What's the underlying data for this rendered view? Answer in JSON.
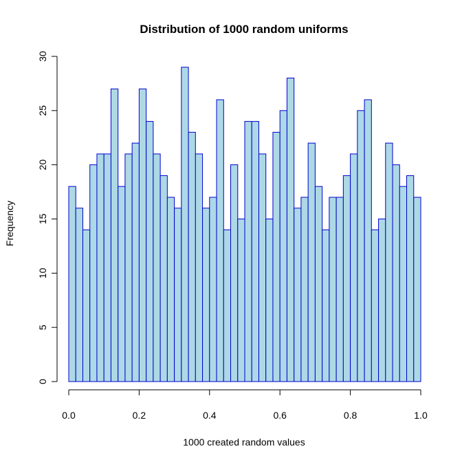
{
  "chart_data": {
    "type": "bar",
    "title": "Distribution of 1000 random uniforms",
    "xlabel": "1000 created random values",
    "ylabel": "Frequency",
    "bin_edges_start": 0.0,
    "bin_width": 0.02,
    "values": [
      18,
      16,
      14,
      20,
      21,
      21,
      27,
      18,
      21,
      22,
      27,
      24,
      21,
      19,
      17,
      16,
      29,
      23,
      21,
      16,
      17,
      26,
      14,
      20,
      15,
      24,
      24,
      21,
      15,
      23,
      25,
      28,
      16,
      17,
      22,
      18,
      14,
      17,
      17,
      19,
      21,
      25,
      26,
      14,
      15,
      22,
      20,
      18,
      19,
      17
    ],
    "xlim": [
      0,
      1
    ],
    "ylim": [
      0,
      30
    ],
    "x_ticks": [
      "0.0",
      "0.2",
      "0.4",
      "0.6",
      "0.8",
      "1.0"
    ],
    "y_ticks": [
      "0",
      "5",
      "10",
      "15",
      "20",
      "25",
      "30"
    ],
    "grid": false,
    "colors": {
      "bar_fill": "#add8e6",
      "bar_stroke": "#0000cd"
    }
  }
}
